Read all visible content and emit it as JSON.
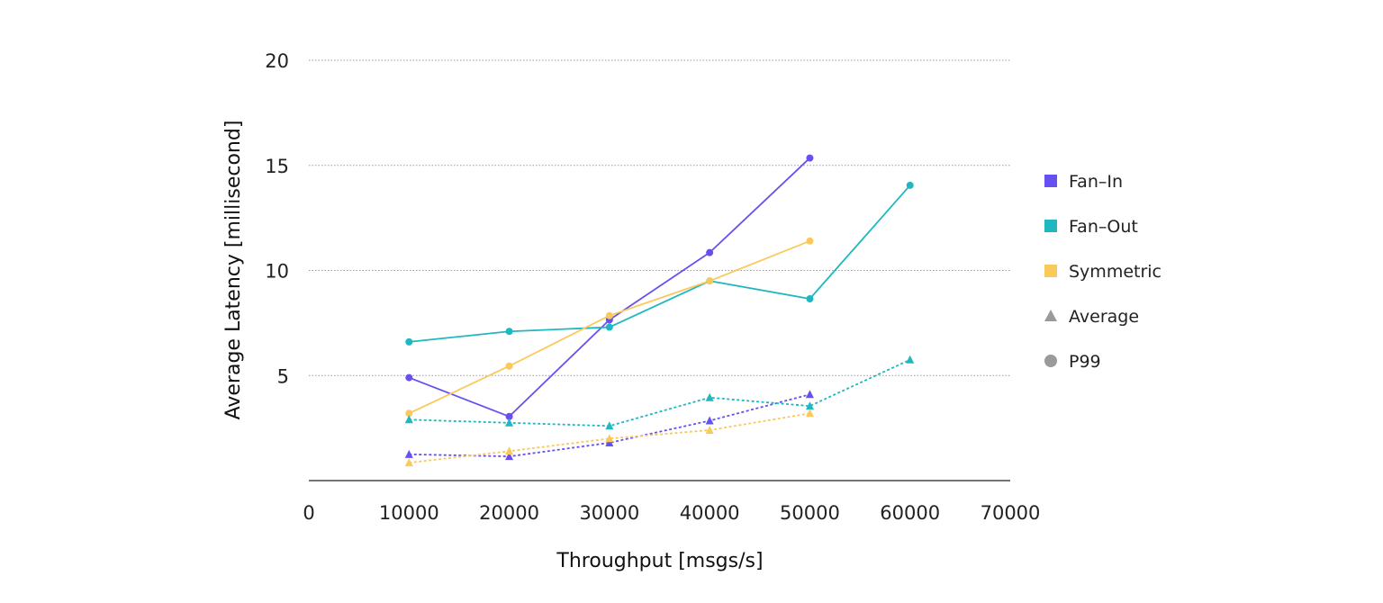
{
  "chart_data": {
    "type": "line",
    "title": "",
    "xlabel": "Throughput [msgs/s]",
    "ylabel": "Average Latency [millisecond]",
    "xlim": [
      0,
      70000
    ],
    "ylim": [
      0,
      20
    ],
    "x_ticks": [
      "0",
      "10000",
      "20000",
      "30000",
      "40000",
      "50000",
      "60000",
      "70000"
    ],
    "y_ticks": [
      "5",
      "10",
      "15",
      "20"
    ],
    "grid": "horizontal dotted",
    "legend_position": "right",
    "series": [
      {
        "name": "Fan-In",
        "metric": "P99",
        "color": "#6650f0",
        "style": "solid",
        "marker": "circle",
        "x": [
          10000,
          20000,
          30000,
          40000,
          50000
        ],
        "y": [
          4.9,
          3.05,
          7.65,
          10.85,
          15.35
        ]
      },
      {
        "name": "Fan-Out",
        "metric": "P99",
        "color": "#1fb8c0",
        "style": "solid",
        "marker": "circle",
        "x": [
          10000,
          20000,
          30000,
          40000,
          50000,
          60000
        ],
        "y": [
          6.6,
          7.1,
          7.3,
          9.5,
          8.65,
          14.05
        ]
      },
      {
        "name": "Symmetric",
        "metric": "P99",
        "color": "#fac95c",
        "style": "solid",
        "marker": "circle",
        "x": [
          10000,
          20000,
          30000,
          40000,
          50000
        ],
        "y": [
          3.2,
          5.45,
          7.85,
          9.5,
          11.4
        ]
      },
      {
        "name": "Fan-In",
        "metric": "Average",
        "color": "#6650f0",
        "style": "dotted",
        "marker": "triangle",
        "x": [
          10000,
          20000,
          30000,
          40000,
          50000
        ],
        "y": [
          1.25,
          1.15,
          1.8,
          2.85,
          4.1
        ]
      },
      {
        "name": "Fan-Out",
        "metric": "Average",
        "color": "#1fb8c0",
        "style": "dotted",
        "marker": "triangle",
        "x": [
          10000,
          20000,
          30000,
          40000,
          50000,
          60000
        ],
        "y": [
          2.9,
          2.75,
          2.6,
          3.95,
          3.55,
          5.75
        ]
      },
      {
        "name": "Symmetric",
        "metric": "Average",
        "color": "#fac95c",
        "style": "dotted",
        "marker": "triangle",
        "x": [
          10000,
          20000,
          30000,
          40000,
          50000
        ],
        "y": [
          0.85,
          1.4,
          2.0,
          2.4,
          3.2
        ]
      }
    ]
  },
  "legend": {
    "items": [
      {
        "label": "Fan–In",
        "symbol": "square",
        "color": "#6650f0"
      },
      {
        "label": "Fan–Out",
        "symbol": "square",
        "color": "#1fb8c0"
      },
      {
        "label": "Symmetric",
        "symbol": "square",
        "color": "#fac95c"
      },
      {
        "label": "Average",
        "symbol": "triangle",
        "color": "#9a9a9a"
      },
      {
        "label": "P99",
        "symbol": "circle",
        "color": "#9a9a9a"
      }
    ]
  },
  "colors": {
    "axis": "#222222",
    "grid": "#9a9a9a"
  }
}
